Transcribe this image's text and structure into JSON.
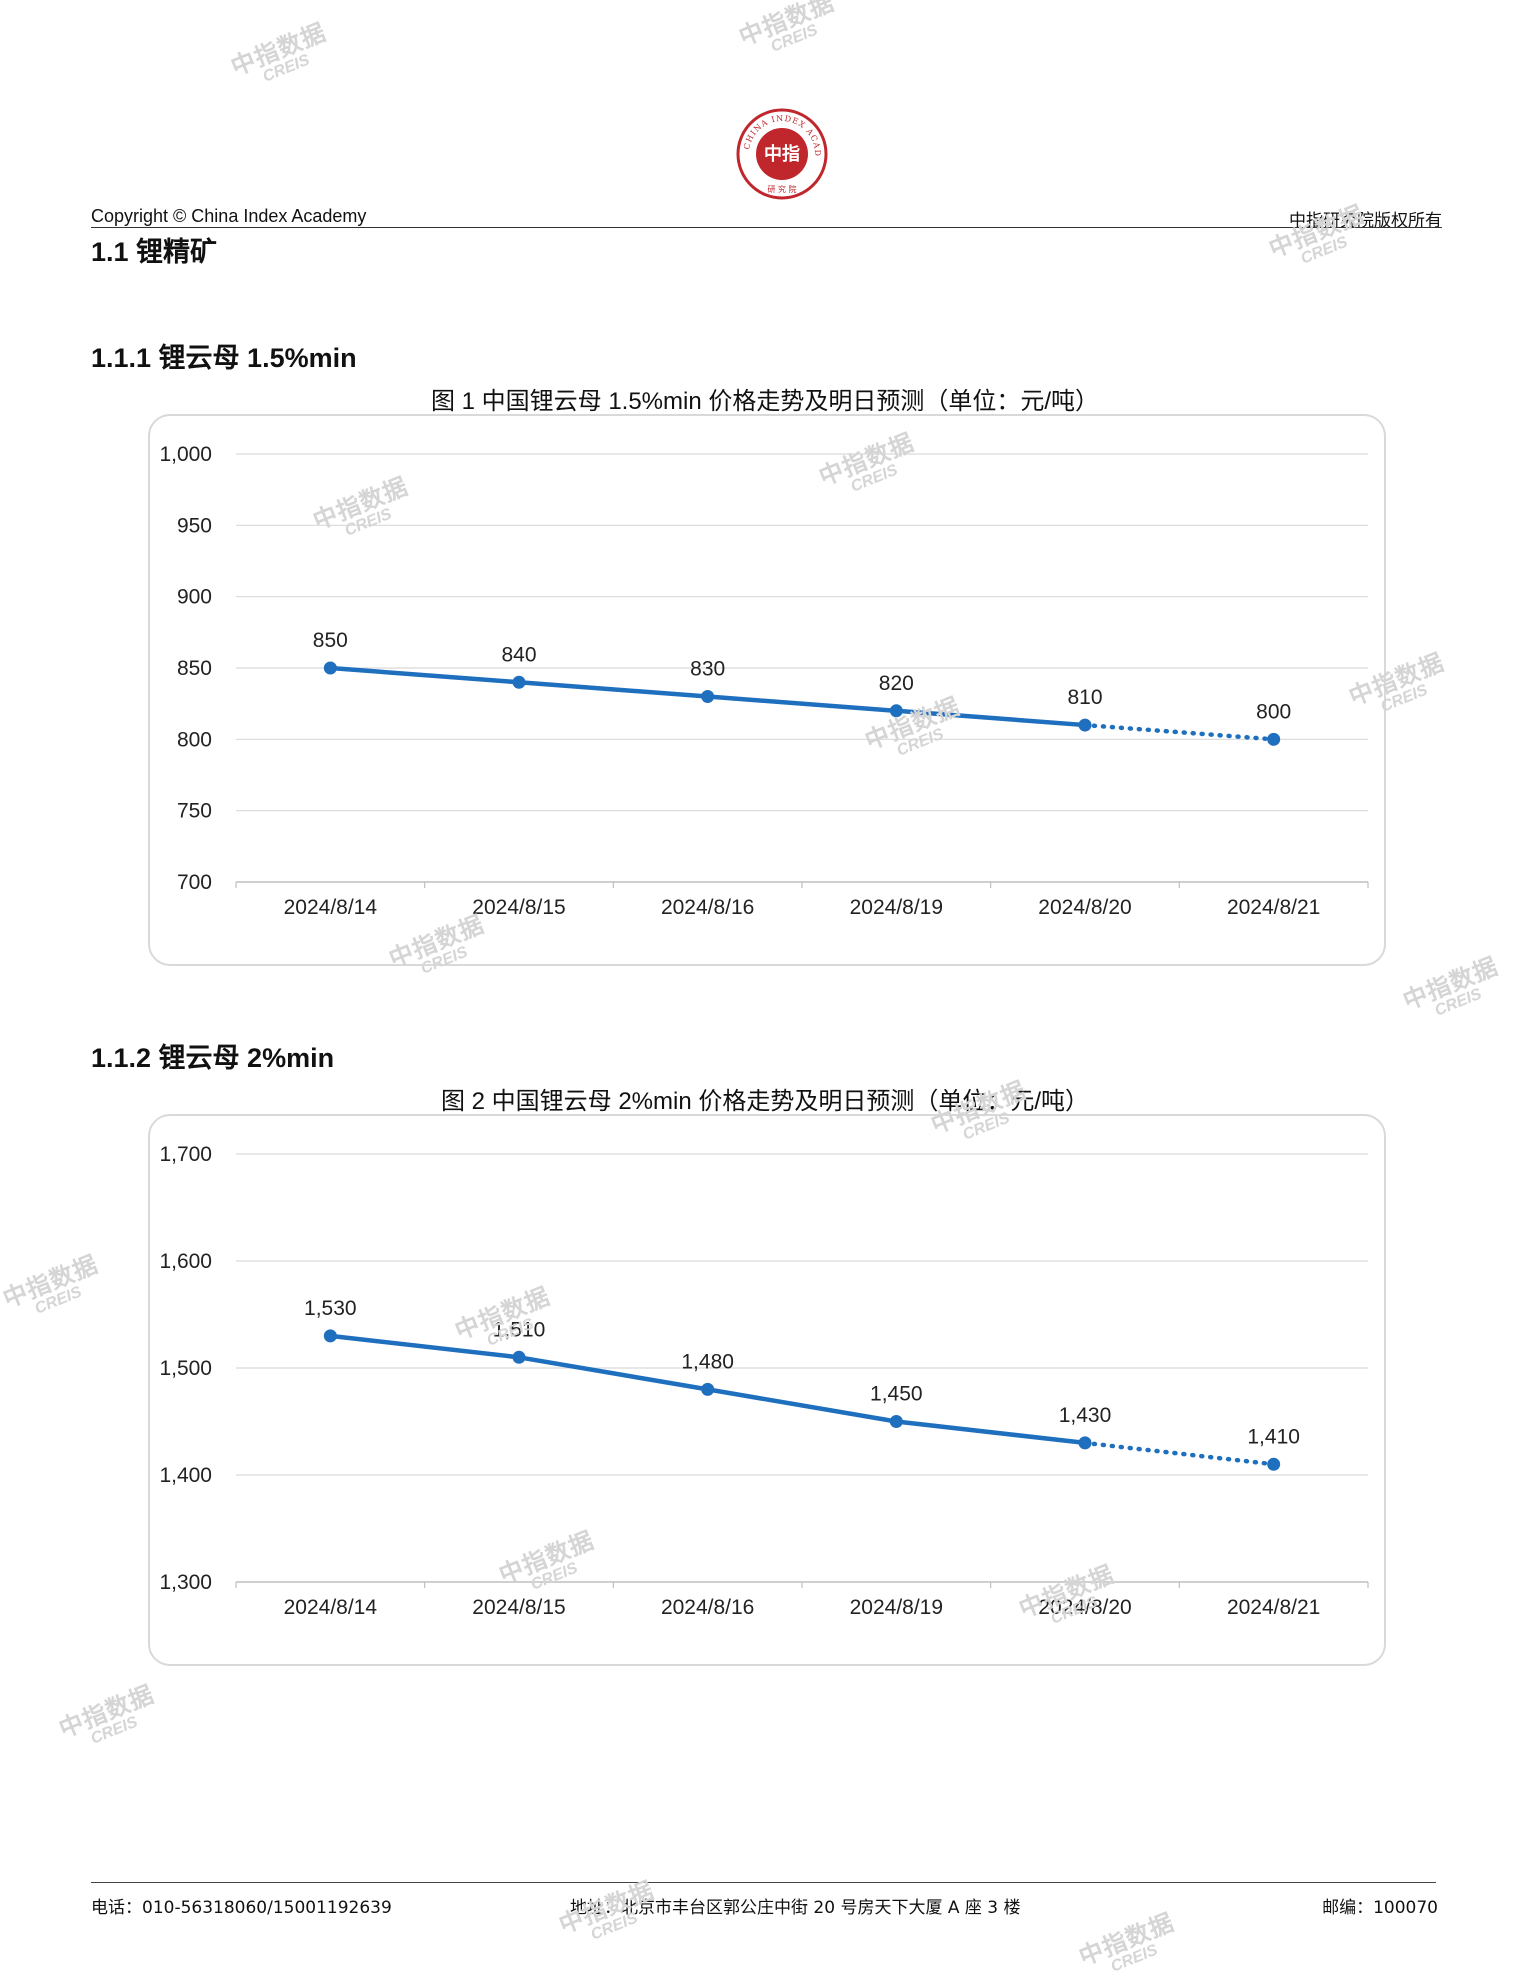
{
  "header": {
    "copyright": "Copyright © China Index Academy",
    "rights": "中指研究院版权所有",
    "logo_text": "中指",
    "logo_ring_text": "CHINA INDEX ACADEMY",
    "logo_bottom_text": "研 究 院",
    "logo_color": "#c0272d"
  },
  "section": {
    "title": "1.1 锂精矿"
  },
  "subsections": [
    {
      "title": "1.1.1 锂云母 1.5%min"
    },
    {
      "title": "1.1.2 锂云母 2%min"
    }
  ],
  "figures": [
    {
      "title": "图 1 中国锂云母 1.5%min 价格走势及明日预测（单位：元/吨）"
    },
    {
      "title": "图 2 中国锂云母 2%min 价格走势及明日预测（单位：元/吨）"
    }
  ],
  "chart_data": [
    {
      "type": "line",
      "title": "图 1 中国锂云母 1.5%min 价格走势及明日预测（单位：元/吨）",
      "categories": [
        "2024/8/14",
        "2024/8/15",
        "2024/8/16",
        "2024/8/19",
        "2024/8/20",
        "2024/8/21"
      ],
      "values": [
        850,
        840,
        830,
        820,
        810,
        800
      ],
      "data_labels": [
        "850",
        "840",
        "830",
        "820",
        "810",
        "800"
      ],
      "forecast_from_index": 4,
      "ylim": [
        700,
        1000
      ],
      "yticks": [
        700,
        750,
        800,
        850,
        900,
        950,
        1000
      ],
      "ytick_labels": [
        "700",
        "750",
        "800",
        "850",
        "900",
        "950",
        "1,000"
      ],
      "grid": true,
      "line_color": "#1f6fbf"
    },
    {
      "type": "line",
      "title": "图 2 中国锂云母 2%min 价格走势及明日预测（单位：元/吨）",
      "categories": [
        "2024/8/14",
        "2024/8/15",
        "2024/8/16",
        "2024/8/19",
        "2024/8/20",
        "2024/8/21"
      ],
      "values": [
        1530,
        1510,
        1480,
        1450,
        1430,
        1410
      ],
      "data_labels": [
        "1,530",
        "1,510",
        "1,480",
        "1,450",
        "1,430",
        "1,410"
      ],
      "forecast_from_index": 4,
      "ylim": [
        1300,
        1700
      ],
      "yticks": [
        1300,
        1400,
        1500,
        1600,
        1700
      ],
      "ytick_labels": [
        "1,300",
        "1,400",
        "1,500",
        "1,600",
        "1,700"
      ],
      "grid": true,
      "line_color": "#1f6fbf"
    }
  ],
  "footer": {
    "phone": "电话：010-56318060/15001192639",
    "address": "地址：北京市丰台区郭公庄中街 20 号房天下大厦 A 座 3 楼",
    "zip": "邮编：100070"
  },
  "watermark": {
    "line1": "中指数据",
    "line2": "CREIS",
    "color": "#d5d5d5"
  }
}
